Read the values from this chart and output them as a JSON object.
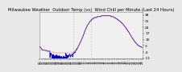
{
  "title": "Milwaukee Weather  Outdoor Temp (vs)  Wind Chill per Minute (Last 24 Hours)",
  "bg_color": "#e8e8e8",
  "plot_bg": "#f0f0f0",
  "grid_color": "#bbbbbb",
  "ylim": [
    -11,
    41
  ],
  "yticks": [
    -11,
    -4,
    3,
    10,
    17,
    24,
    31,
    38
  ],
  "ytick_labels": [
    "-11",
    "-4",
    "3",
    "10",
    "17",
    "24",
    "31",
    "38"
  ],
  "n_points": 1440,
  "outdoor_temp_color": "#ff0000",
  "wind_chill_color": "#0000cc",
  "vline_color": "#999999",
  "vline_positions": [
    0.33,
    0.5
  ],
  "outdoor_temp": [
    2,
    2,
    2,
    1,
    1,
    1,
    0,
    0,
    -1,
    -1,
    -1,
    -2,
    -2,
    -2,
    -2,
    -2,
    -2,
    -2,
    -2,
    -2,
    -2,
    -2,
    -2,
    -2,
    -2,
    -2,
    -2,
    -2,
    -3,
    -3,
    -3,
    -3,
    -3,
    -3,
    -3,
    -3,
    -3,
    -3,
    -3,
    -3,
    -3,
    -3,
    -3,
    -3,
    -3,
    -3,
    -3,
    -4,
    -4,
    -4,
    -4,
    -4,
    -4,
    -4,
    -4,
    -4,
    -4,
    -4,
    -4,
    -4,
    -4,
    -5,
    -5,
    -5,
    -5,
    -5,
    -5,
    -5,
    -5,
    -5,
    -5,
    -5,
    -5,
    -5,
    -5,
    -5,
    -5,
    -5,
    -5,
    -5,
    -5,
    -5,
    -5,
    -5,
    -5,
    -5,
    -5,
    -5,
    -5,
    -5,
    -5,
    -5,
    -5,
    -5,
    -5,
    -5,
    -5,
    -5,
    -5,
    -5,
    -5,
    -5,
    -5,
    -5,
    -5,
    -5,
    -5,
    -5,
    -5,
    -5,
    -5,
    -5,
    -5,
    -5,
    -5,
    -5,
    -5,
    -5,
    -5,
    -5,
    -5,
    -5,
    -5,
    -5,
    -5,
    -5,
    -5,
    -5,
    -5,
    -5,
    -5,
    -5,
    -5,
    -5,
    -5,
    -5,
    -5,
    -5,
    -5,
    -5,
    -5,
    -5,
    -5,
    -5,
    -4,
    -4,
    -4,
    -4,
    -3,
    -3,
    -3,
    -3,
    -2,
    -2,
    -2,
    -1,
    -1,
    -1,
    0,
    0,
    0,
    1,
    1,
    2,
    2,
    3,
    3,
    4,
    4,
    5,
    5,
    6,
    6,
    7,
    7,
    8,
    8,
    9,
    10,
    10,
    11,
    12,
    12,
    13,
    14,
    14,
    15,
    16,
    16,
    17,
    18,
    19,
    19,
    20,
    21,
    21,
    22,
    23,
    23,
    24,
    24,
    25,
    25,
    26,
    26,
    27,
    27,
    28,
    28,
    28,
    29,
    29,
    30,
    30,
    30,
    31,
    31,
    31,
    32,
    32,
    32,
    33,
    33,
    33,
    33,
    33,
    34,
    34,
    34,
    34,
    34,
    34,
    35,
    35,
    35,
    35,
    35,
    35,
    35,
    35,
    35,
    35,
    35,
    35,
    36,
    36,
    36,
    36,
    36,
    36,
    36,
    36,
    36,
    36,
    36,
    36,
    36,
    36,
    36,
    36,
    36,
    36,
    36,
    37,
    37,
    37,
    37,
    37,
    37,
    37,
    37,
    37,
    37,
    37,
    37,
    37,
    37,
    37,
    37,
    37,
    37,
    37,
    37,
    37,
    37,
    37,
    37,
    37,
    37,
    37,
    37,
    37,
    37,
    37,
    37,
    37,
    37,
    37,
    37,
    37,
    37,
    37,
    37,
    36,
    36,
    36,
    36,
    36,
    36,
    36,
    36,
    36,
    36,
    36,
    36,
    35,
    35,
    35,
    35,
    35,
    35,
    35,
    35,
    34,
    34,
    34,
    34,
    34,
    34,
    33,
    33,
    33,
    33,
    33,
    32,
    32,
    32,
    32,
    32,
    31,
    31,
    31,
    31,
    30,
    30,
    30,
    30,
    29,
    29,
    29,
    29,
    28,
    28,
    28,
    28,
    27,
    27,
    27,
    26,
    26,
    26,
    25,
    25,
    25,
    24,
    24,
    24,
    23,
    23,
    22,
    22,
    22,
    21,
    21,
    21,
    20,
    20,
    19,
    19,
    19,
    18,
    18,
    17,
    17,
    16,
    16,
    16,
    15,
    15,
    14,
    14,
    13,
    13,
    12,
    12,
    12,
    11,
    11,
    10,
    10,
    10,
    9,
    9,
    8,
    8,
    8,
    7,
    7,
    7,
    6,
    6,
    6,
    5,
    5,
    5,
    5,
    4,
    4,
    4,
    4,
    4,
    3,
    3,
    3,
    3,
    3,
    3,
    2,
    2,
    2,
    2,
    2,
    2,
    2,
    1,
    1,
    1,
    1,
    1,
    1
  ],
  "title_fontsize": 3.8,
  "tick_fontsize": 3.2,
  "xtick_fontsize": 2.5,
  "n_xticks": 48,
  "line_width": 0.5
}
